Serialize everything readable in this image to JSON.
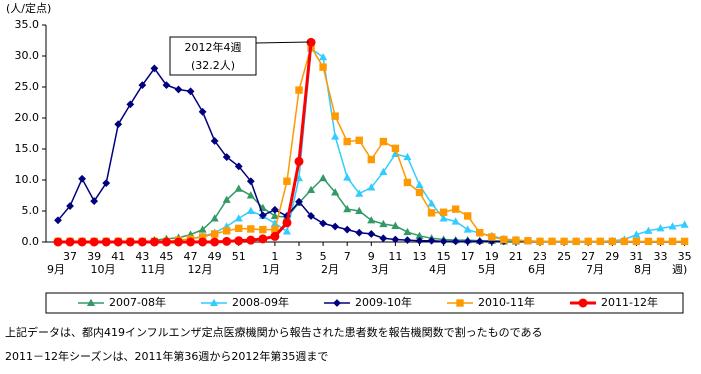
{
  "chart_data": {
    "type": "line",
    "y_label": "(人/定点)",
    "x_unit": "週)",
    "categories": [
      null,
      "37",
      null,
      "39",
      null,
      "41",
      null,
      "43",
      null,
      "45",
      null,
      "47",
      null,
      "49",
      null,
      "51",
      null,
      null,
      "1",
      null,
      "3",
      null,
      "5",
      null,
      "7",
      null,
      "9",
      null,
      "11",
      null,
      "13",
      null,
      "15",
      null,
      "17",
      null,
      "19",
      null,
      "21",
      null,
      "23",
      null,
      "25",
      null,
      "27",
      null,
      "29",
      null,
      "31",
      null,
      "33",
      null,
      "35"
    ],
    "months": [
      "9月",
      "10月",
      "11月",
      "12月",
      "1月",
      "2月",
      "3月",
      "4月",
      "5月",
      "6月",
      "7月",
      "8月"
    ],
    "ylim": [
      0,
      35
    ],
    "yticks": [
      {
        "value": 0,
        "label": "0.0"
      },
      {
        "value": 5,
        "label": "5.0"
      },
      {
        "value": 10,
        "label": "10.0"
      },
      {
        "value": 15,
        "label": "15.0"
      },
      {
        "value": 20,
        "label": "20.0"
      },
      {
        "value": 25,
        "label": "25.0"
      },
      {
        "value": 30,
        "label": "30.0"
      },
      {
        "value": 35,
        "label": "35.0"
      }
    ],
    "grid": false,
    "legend": "bottom",
    "series": [
      {
        "name": "2007-08年",
        "color": "#339966",
        "marker": "triangle",
        "values": [
          null,
          null,
          null,
          null,
          null,
          null,
          null,
          null,
          0.3,
          0.5,
          0.7,
          1.2,
          2.0,
          3.8,
          6.8,
          8.6,
          7.5,
          5.5,
          4.2,
          4.0,
          6.3,
          8.4,
          10.3,
          8.0,
          5.3,
          5.0,
          3.5,
          2.9,
          2.6,
          1.6,
          1.0,
          0.6,
          0.4,
          0.3,
          0.3,
          0.2,
          0.2,
          0.1,
          0.1,
          null,
          null,
          null,
          null,
          null,
          null,
          null,
          null,
          null,
          null,
          null,
          null,
          null,
          null
        ]
      },
      {
        "name": "2008-09年",
        "color": "#33ccff",
        "marker": "triangle",
        "values": [
          null,
          null,
          null,
          null,
          null,
          null,
          null,
          null,
          null,
          null,
          null,
          0.5,
          0.9,
          1.5,
          2.5,
          3.8,
          5.0,
          4.2,
          3.0,
          1.7,
          10.3,
          31.2,
          29.8,
          17.0,
          10.4,
          7.8,
          8.8,
          11.3,
          14.2,
          13.7,
          9.2,
          6.2,
          3.8,
          3.3,
          2.0,
          1.4,
          1.0,
          0.5,
          0.3,
          0.1,
          0.1,
          0.1,
          0.1,
          0.1,
          0.1,
          0.1,
          0.2,
          0.4,
          1.2,
          1.8,
          2.2,
          2.5,
          2.8
        ]
      },
      {
        "name": "2009-10年",
        "color": "#000080",
        "marker": "diamond",
        "values": [
          3.5,
          5.8,
          10.2,
          6.6,
          9.5,
          19.0,
          22.2,
          25.3,
          28.0,
          25.3,
          24.6,
          24.3,
          21.0,
          16.3,
          13.7,
          12.2,
          9.8,
          4.3,
          5.2,
          4.2,
          6.5,
          4.2,
          3.0,
          2.5,
          2.0,
          1.5,
          1.3,
          0.6,
          0.4,
          0.3,
          0.2,
          0.2,
          0.1,
          0.1,
          0.1,
          0.1,
          0.1,
          0.1,
          null,
          null,
          null,
          null,
          null,
          null,
          null,
          null,
          null,
          null,
          null,
          null,
          null,
          null,
          null
        ]
      },
      {
        "name": "2010-11年",
        "color": "#ff9900",
        "marker": "square",
        "values": [
          0.1,
          0.1,
          0.1,
          0.1,
          0.1,
          0.1,
          0.1,
          0.1,
          0.1,
          0.1,
          0.3,
          0.5,
          0.8,
          1.3,
          1.8,
          2.2,
          2.1,
          2.0,
          2.0,
          9.8,
          24.5,
          31.5,
          28.2,
          20.3,
          16.2,
          16.4,
          13.3,
          16.2,
          15.1,
          9.6,
          8.0,
          4.7,
          4.8,
          5.3,
          4.2,
          1.5,
          0.8,
          0.4,
          0.3,
          0.2,
          0.1,
          0.1,
          0.1,
          0.1,
          0.1,
          0.1,
          0.1,
          0.1,
          0.1,
          0.1,
          0.1,
          0.1,
          0.1
        ]
      },
      {
        "name": "2011-12年",
        "color": "#ff0000",
        "marker": "circle",
        "values": [
          0,
          0,
          0,
          0,
          0,
          0,
          0,
          0,
          0,
          0,
          0,
          0,
          0,
          0,
          0.1,
          0.2,
          0.3,
          0.5,
          0.9,
          3.1,
          13.0,
          32.2,
          null,
          null,
          null,
          null,
          null,
          null,
          null,
          null,
          null,
          null,
          null,
          null,
          null,
          null,
          null,
          null,
          null,
          null,
          null,
          null,
          null,
          null,
          null,
          null,
          null,
          null,
          null,
          null,
          null,
          null,
          null
        ]
      }
    ],
    "annotation": [
      "2012年4週",
      "(32.2人)"
    ],
    "notes": [
      "上記データは、都内419インフルエンザ定点医療機関から報告された患者数を報告機関数で割ったものである",
      "2011－12年シーズンは、2011年第36週から2012年第35週まで"
    ]
  }
}
